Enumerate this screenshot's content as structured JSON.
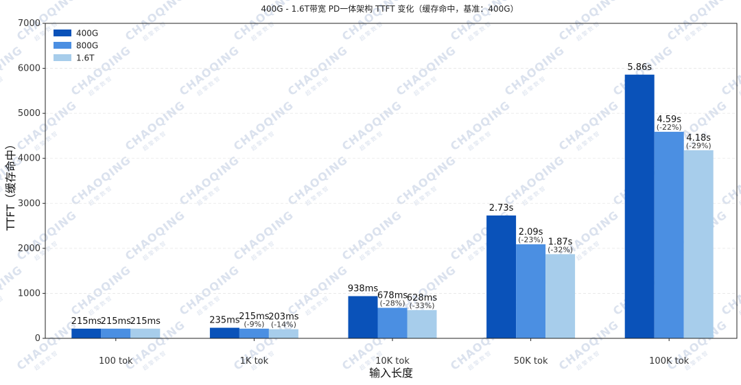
{
  "chart_data": {
    "type": "bar",
    "title": "400G - 1.6T带宽 PD一体架构 TTFT 变化（缓存命中，基准：400G）",
    "xlabel": "输入长度",
    "ylabel": "TTFT（缓存命中）",
    "ylim": [
      0,
      7000
    ],
    "yticks": [
      0,
      1000,
      2000,
      3000,
      4000,
      5000,
      6000,
      7000
    ],
    "grid": true,
    "legend_position": "top-left",
    "categories": [
      "100 tok",
      "1K tok",
      "10K tok",
      "50K tok",
      "100K tok"
    ],
    "series": [
      {
        "name": "400G",
        "color": "#0a52b9",
        "values": [
          215,
          235,
          938,
          2730,
          5860
        ],
        "labels": [
          "215ms",
          "235ms",
          "938ms",
          "2.73s",
          "5.86s"
        ],
        "pct_labels": [
          "",
          "",
          "",
          "",
          ""
        ]
      },
      {
        "name": "800G",
        "color": "#4b8fe2",
        "values": [
          215,
          215,
          678,
          2090,
          4590
        ],
        "labels": [
          "215ms",
          "215ms",
          "678ms",
          "2.09s",
          "4.59s"
        ],
        "pct_labels": [
          "",
          "(-9%)",
          "(-28%)",
          "(-23%)",
          "(-22%)"
        ]
      },
      {
        "name": "1.6T",
        "color": "#a7cdeb",
        "values": [
          215,
          203,
          628,
          1870,
          4180
        ],
        "labels": [
          "215ms",
          "203ms",
          "628ms",
          "1.87s",
          "4.18s"
        ],
        "pct_labels": [
          "",
          "(-14%)",
          "(-33%)",
          "(-32%)",
          "(-29%)"
        ]
      }
    ]
  },
  "watermark": {
    "text": "CHAOQING",
    "sub": "超 擎 数 智"
  }
}
